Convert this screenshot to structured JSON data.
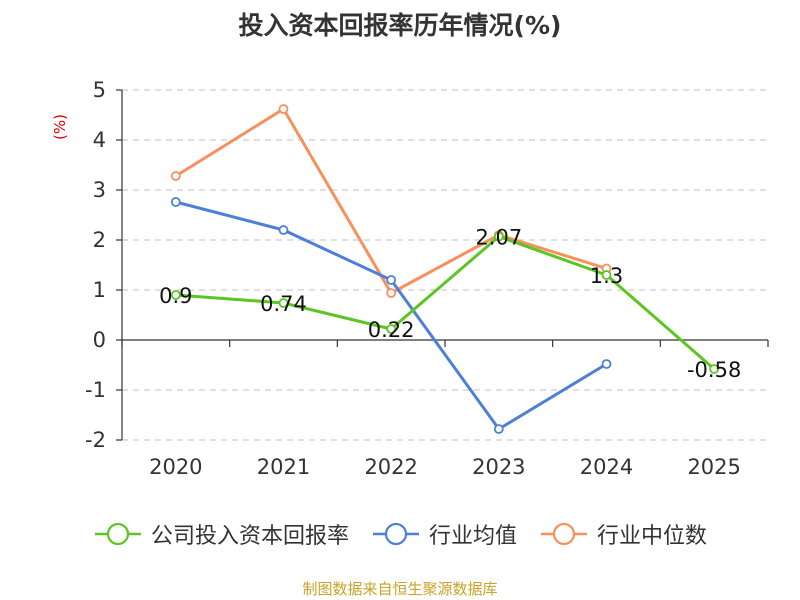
{
  "chart_data": {
    "type": "line",
    "title": "投入资本回报率历年情况(%)",
    "ylabel": "(%)",
    "categories": [
      "2020",
      "2021",
      "2022",
      "2023",
      "2024",
      "2025"
    ],
    "ylim": [
      -2,
      5
    ],
    "yticks": [
      -2,
      -1,
      0,
      1,
      2,
      3,
      4,
      5
    ],
    "grid": true,
    "legend_position": "bottom",
    "series": [
      {
        "name": "公司投入资本回报率",
        "color": "#5cc524",
        "values": [
          0.9,
          0.74,
          0.22,
          2.07,
          1.3,
          -0.58
        ],
        "labels": [
          "0.9",
          "0.74",
          "0.22",
          "2.07",
          "1.3",
          "-0.58"
        ]
      },
      {
        "name": "行业均值",
        "color": "#4e7fd8",
        "values": [
          2.76,
          2.2,
          1.2,
          -1.78,
          -0.48,
          null
        ]
      },
      {
        "name": "行业中位数",
        "color": "#f7905c",
        "values": [
          3.28,
          4.62,
          0.94,
          2.1,
          1.43,
          null
        ]
      }
    ]
  },
  "source_note": "制图数据来自恒生聚源数据库"
}
